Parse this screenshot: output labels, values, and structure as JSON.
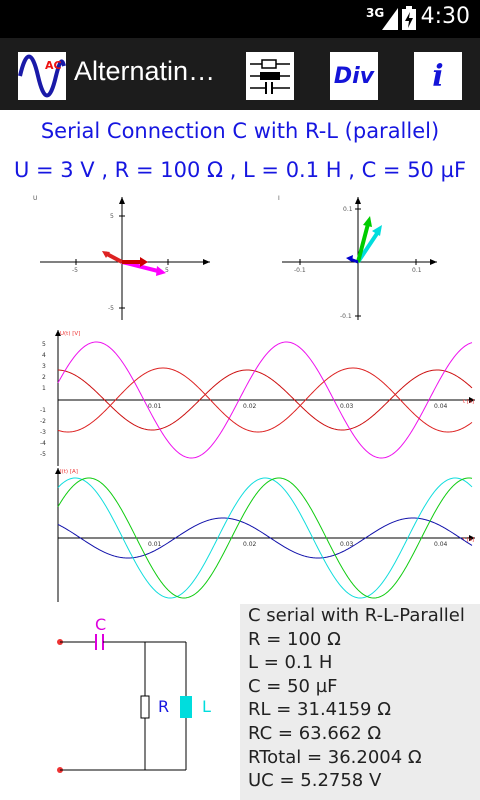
{
  "status": {
    "network": "3G",
    "time": "4:30"
  },
  "app": {
    "title": "Alternatin…",
    "icon_label": "AC",
    "div_label": "Div",
    "info_label": "i"
  },
  "heading": {
    "line1": "Serial Connection C with R-L (parallel)",
    "line2": "U = 3 V , R = 100 Ω , L = 0.1 H , C = 50 µF"
  },
  "phasor_u": {
    "axis_label": "U",
    "ticks": {
      "x_neg": "-5",
      "x_pos": "5",
      "y_pos": "5",
      "y_neg": "-5"
    },
    "colors": [
      "#ff0000",
      "#ff00ff",
      "#cc0000"
    ]
  },
  "phasor_i": {
    "axis_label": "I",
    "ticks": {
      "x_neg": "-0.1",
      "x_pos": "0.1",
      "y_pos": "0.1",
      "y_neg": "-0.1"
    },
    "colors": [
      "#00cc00",
      "#00e5e5",
      "#0000cc"
    ]
  },
  "voltage_plot": {
    "ylabel": "U(t) [V]",
    "xlabel": "t [s]",
    "yticks": [
      "5",
      "4",
      "3",
      "2",
      "1",
      "-1",
      "-2",
      "-3",
      "-4",
      "-5"
    ],
    "xticks": [
      "0.01",
      "0.02",
      "0.03",
      "0.04"
    ]
  },
  "current_plot": {
    "ylabel": "I(t) [A]",
    "xlabel": "t [s]",
    "xticks": [
      "0.01",
      "0.02",
      "0.03",
      "0.04"
    ]
  },
  "circuit": {
    "c_label": "C",
    "r_label": "R",
    "l_label": "L"
  },
  "info": {
    "lines": [
      "C serial with R-L-Parallel",
      "R = 100 Ω",
      "L = 0.1 H",
      "C = 50 µF",
      "RL = 31.4159 Ω",
      "RC = 63.662 Ω",
      "RTotal = 36.2004 Ω",
      "UC = 5.2758 V"
    ]
  },
  "colors": {
    "heading": "#1616e0",
    "phasor_axis": "#000000",
    "u_total": "#cc0000",
    "u_c": "#ff00ff",
    "u_rl": "#dd2222",
    "i_total": "#00cc00",
    "i_r": "#0000cc",
    "i_l": "#00dddd",
    "capacitor_label": "#dd00dd",
    "resistor_label": "#1616e0",
    "inductor": "#00dddd"
  }
}
